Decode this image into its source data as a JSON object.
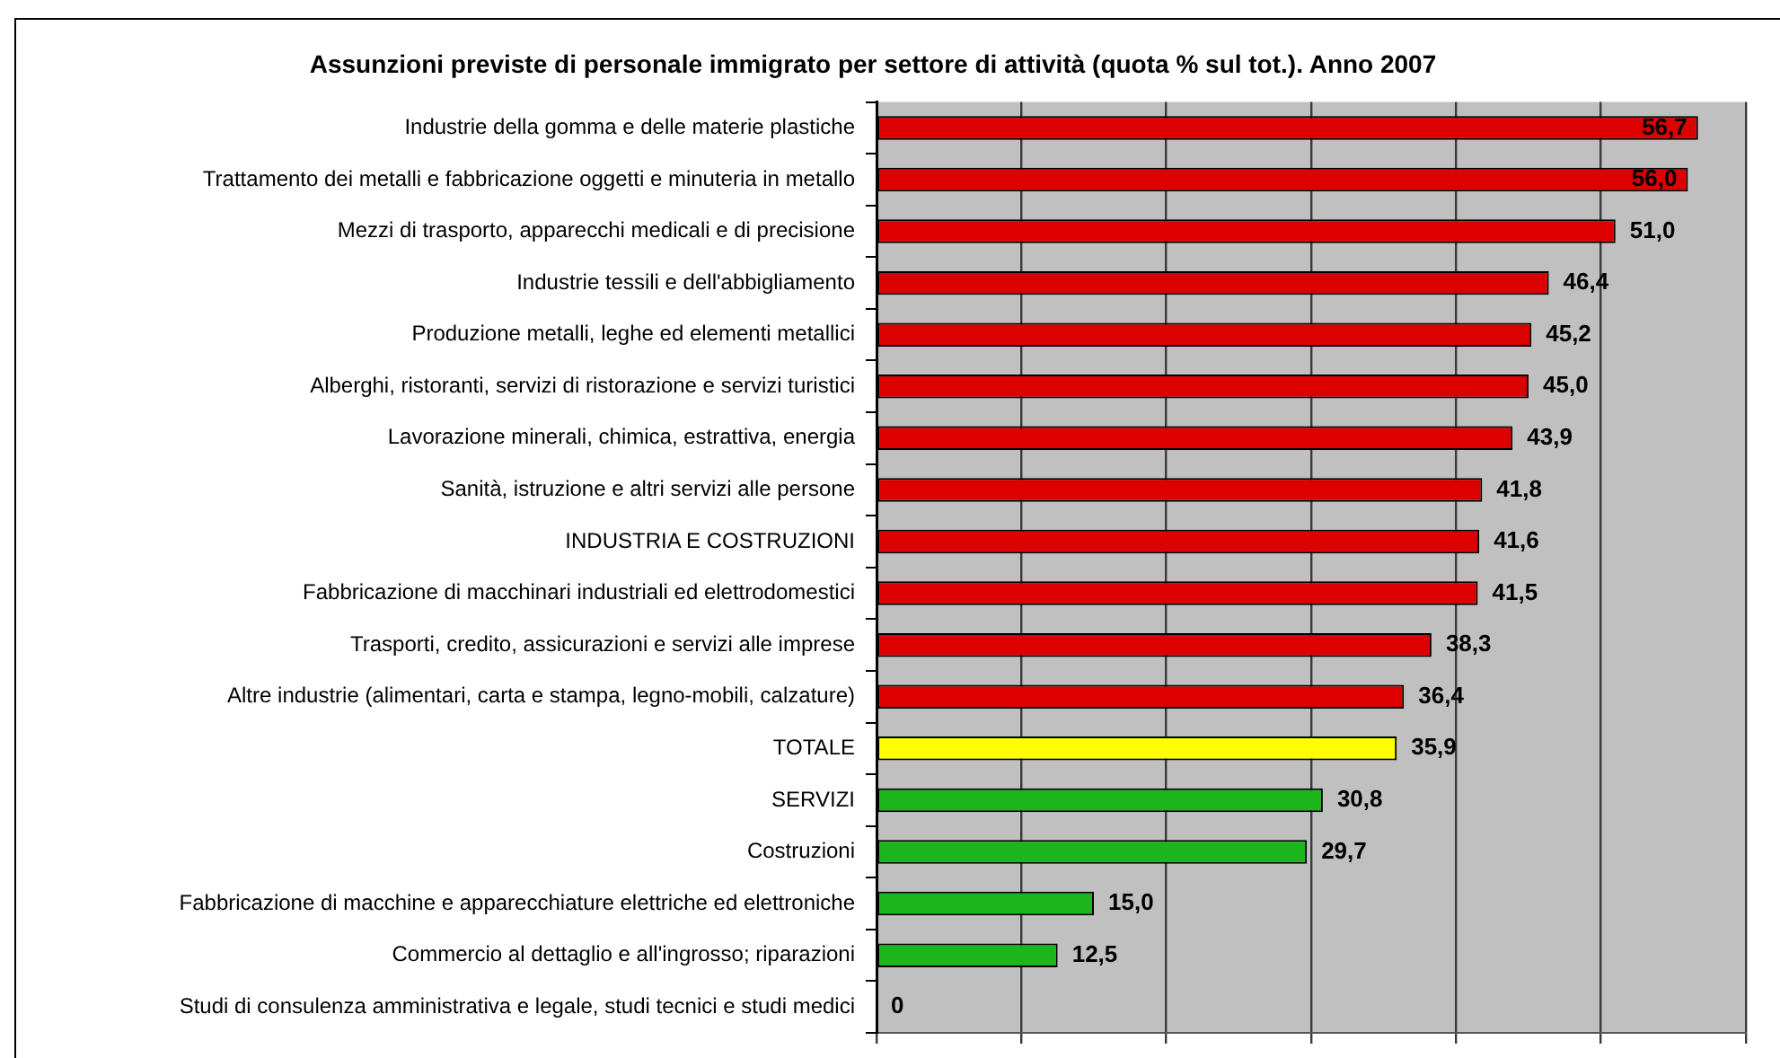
{
  "chart_data": {
    "type": "bar",
    "orientation": "horizontal",
    "title": "Assunzioni previste di personale immigrato per settore di attività (quota % sul tot.). Anno 2007",
    "categories": [
      "Industrie della gomma e delle materie plastiche",
      "Trattamento dei metalli e fabbricazione oggetti e minuteria in metallo",
      "Mezzi di trasporto, apparecchi medicali e di precisione",
      "Industrie tessili e dell'abbigliamento",
      "Produzione metalli, leghe ed elementi metallici",
      "Alberghi, ristoranti, servizi di ristorazione e servizi turistici",
      "Lavorazione minerali, chimica, estrattiva, energia",
      "Sanità, istruzione e altri servizi alle persone",
      "INDUSTRIA E COSTRUZIONI",
      "Fabbricazione di macchinari industriali ed elettrodomestici",
      "Trasporti, credito, assicurazioni e servizi alle imprese",
      "Altre industrie (alimentari, carta e stampa, legno-mobili, calzature)",
      "TOTALE",
      "SERVIZI",
      "Costruzioni",
      "Fabbricazione di macchine e apparecchiature elettriche ed elettroniche",
      "Commercio al dettaglio e all'ingrosso; riparazioni",
      "Studi di consulenza amministrativa e legale, studi tecnici e studi medici"
    ],
    "values": [
      56.7,
      56.0,
      51.0,
      46.4,
      45.2,
      45.0,
      43.9,
      41.8,
      41.6,
      41.5,
      38.3,
      36.4,
      35.9,
      30.8,
      29.7,
      15.0,
      12.5,
      0
    ],
    "value_labels": [
      "56,7",
      "56,0",
      "51,0",
      "46,4",
      "45,2",
      "45,0",
      "43,9",
      "41,8",
      "41,6",
      "41,5",
      "38,3",
      "36,4",
      "35,9",
      "30,8",
      "29,7",
      "15,0",
      "12,5",
      "0"
    ],
    "colors": [
      "#dd0000",
      "#dd0000",
      "#dd0000",
      "#dd0000",
      "#dd0000",
      "#dd0000",
      "#dd0000",
      "#dd0000",
      "#dd0000",
      "#dd0000",
      "#dd0000",
      "#dd0000",
      "#ffff00",
      "#1cb51c",
      "#1cb51c",
      "#1cb51c",
      "#1cb51c",
      "#1cb51c"
    ],
    "xlim": [
      0,
      60
    ],
    "xticks": [
      {
        "value": 0,
        "label": null
      },
      {
        "value": 10,
        "label": null
      },
      {
        "value": 20,
        "label": null
      },
      {
        "value": 30,
        "label": null
      },
      {
        "value": 40,
        "label": null
      },
      {
        "value": 50,
        "label": null
      },
      {
        "value": 60,
        "label": null
      }
    ],
    "tick_labels": "y",
    "grid": "x"
  }
}
